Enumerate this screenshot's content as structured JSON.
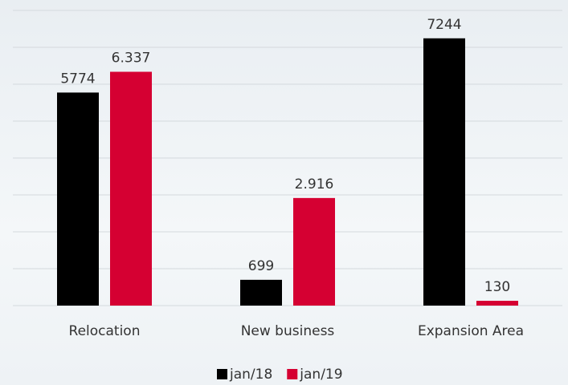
{
  "chart_data": {
    "type": "bar",
    "categories": [
      "Relocation",
      "New business",
      "Expansion Area"
    ],
    "series": [
      {
        "name": "jan/18",
        "color": "#000000",
        "values": [
          5774,
          699,
          7244
        ]
      },
      {
        "name": "jan/19",
        "color": "#d50032",
        "values": [
          6337,
          2916,
          130
        ],
        "value_labels": [
          "6.337",
          "2.916",
          "130"
        ]
      }
    ],
    "ylim": [
      0,
      8000
    ],
    "yticks": [
      0,
      1000,
      2000,
      3000,
      4000,
      5000,
      6000,
      7000,
      8000
    ],
    "grid": true,
    "legend": "bottom"
  }
}
